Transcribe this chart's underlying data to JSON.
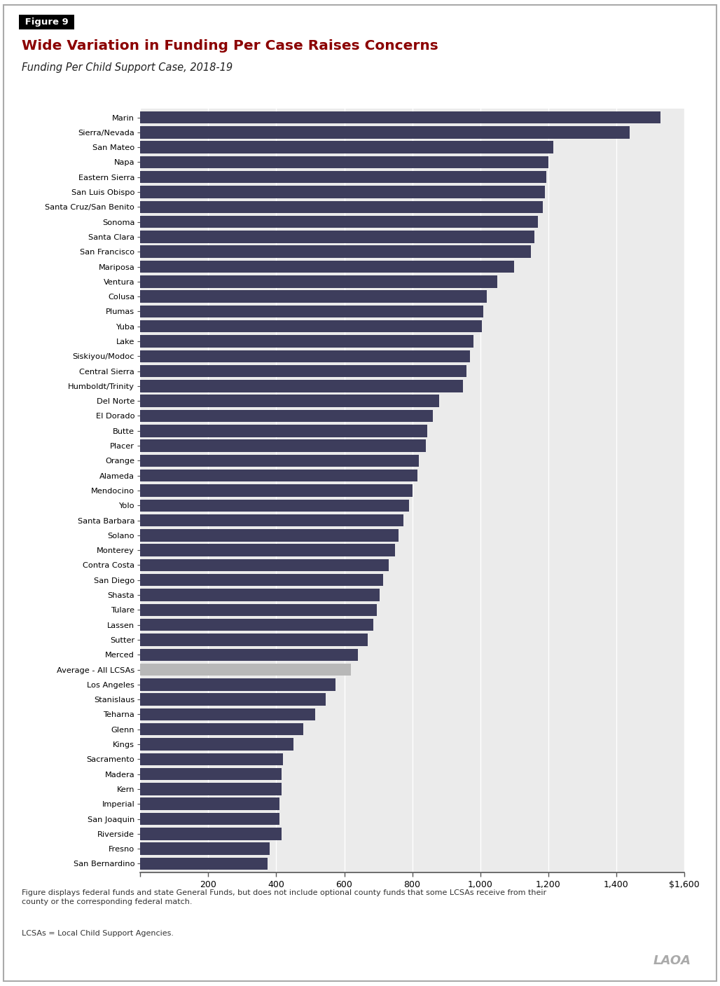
{
  "title": "Wide Variation in Funding Per Case Raises Concerns",
  "subtitle": "Funding Per Child Support Case, 2018-19",
  "figure_label": "Figure 9",
  "bar_color": "#3d3d5c",
  "avg_bar_color": "#b8b8b8",
  "background_color": "#ffffff",
  "footnote1": "Figure displays federal funds and state General Funds, but does not include optional county funds that some LCSAs receive from their\ncounty or the corresponding federal match.",
  "footnote2": "LCSAs = Local Child Support Agencies.",
  "watermark": "LAOA",
  "categories": [
    "Marin",
    "Sierra/Nevada",
    "San Mateo",
    "Napa",
    "Eastern Sierra",
    "San Luis Obispo",
    "Santa Cruz/San Benito",
    "Sonoma",
    "Santa Clara",
    "San Francisco",
    "Mariposa",
    "Ventura",
    "Colusa",
    "Plumas",
    "Yuba",
    "Lake",
    "Siskiyou/Modoc",
    "Central Sierra",
    "Humboldt/Trinity",
    "Del Norte",
    "El Dorado",
    "Butte",
    "Placer",
    "Orange",
    "Alameda",
    "Mendocino",
    "Yolo",
    "Santa Barbara",
    "Solano",
    "Monterey",
    "Contra Costa",
    "San Diego",
    "Shasta",
    "Tulare",
    "Lassen",
    "Sutter",
    "Merced",
    "Average - All LCSAs",
    "Los Angeles",
    "Stanislaus",
    "Teharna",
    "Glenn",
    "Kings",
    "Sacramento",
    "Madera",
    "Kern",
    "Imperial",
    "San Joaquin",
    "Riverside",
    "Fresno",
    "San Bernardino"
  ],
  "values": [
    1530,
    1440,
    1215,
    1200,
    1195,
    1190,
    1185,
    1170,
    1160,
    1150,
    1100,
    1050,
    1020,
    1010,
    1005,
    980,
    970,
    960,
    950,
    880,
    860,
    845,
    840,
    820,
    815,
    800,
    790,
    775,
    760,
    750,
    730,
    715,
    705,
    695,
    685,
    670,
    640,
    620,
    575,
    545,
    515,
    480,
    450,
    420,
    415,
    415,
    410,
    410,
    415,
    380,
    375
  ],
  "xlim": [
    0,
    1600
  ],
  "xticks": [
    0,
    200,
    400,
    600,
    800,
    1000,
    1200,
    1400,
    1600
  ],
  "xtick_labels": [
    "",
    "200",
    "400",
    "600",
    "800",
    "1,000",
    "1,200",
    "1,400",
    "$1,600"
  ],
  "plot_facecolor": "#ebebeb",
  "grid_color": "#ffffff",
  "border_color": "#aaaaaa",
  "title_color": "#8B0000",
  "header_bg": "#000000",
  "header_text_color": "#ffffff",
  "footnote_color": "#333333",
  "watermark_color": "#aaaaaa"
}
